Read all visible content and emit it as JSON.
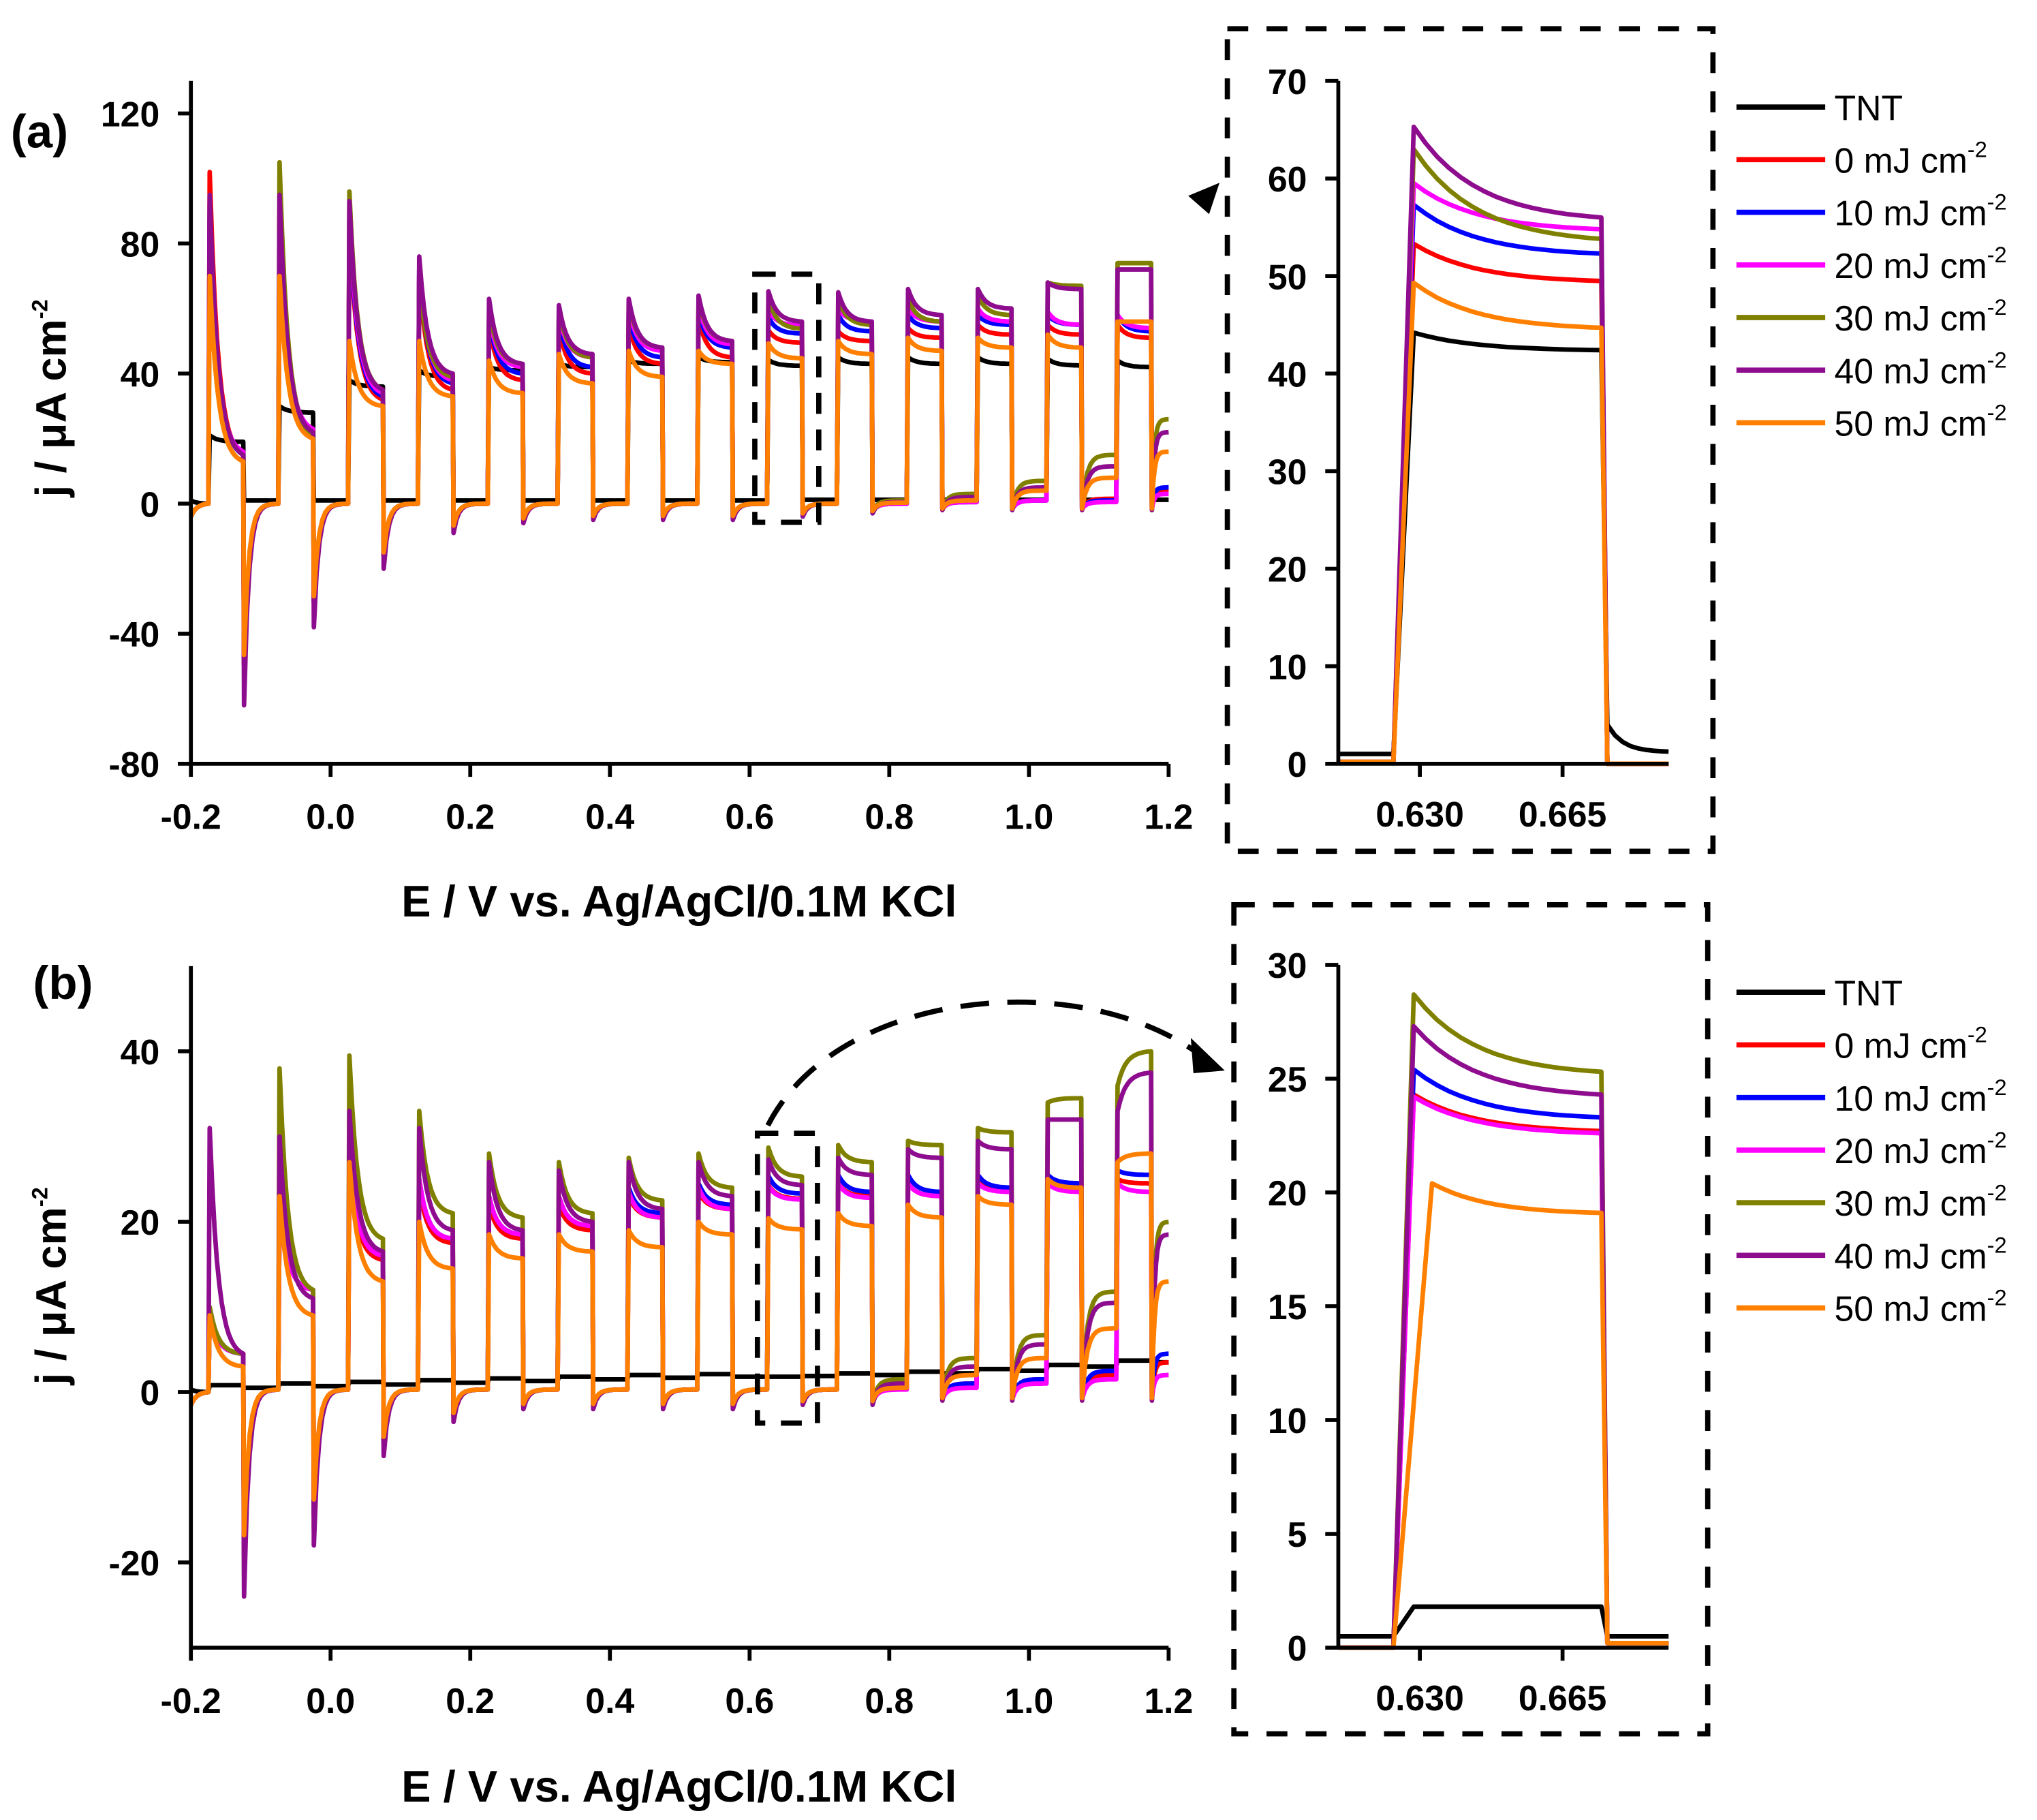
{
  "chart_data": [
    {
      "panel": "(a)",
      "type": "line",
      "xlabel": "E / V vs. Ag/AgCl/0.1M KCl",
      "ylabel": "j / μA cm",
      "ylabel_sup": "-2",
      "xlim": [
        -0.2,
        1.2
      ],
      "ylim": [
        -80,
        130
      ],
      "xticks": [
        "-0.2",
        "0.0",
        "0.2",
        "0.4",
        "0.6",
        "0.8",
        "1.0",
        "1.2"
      ],
      "yticks": [
        "-80",
        "-40",
        "0",
        "40",
        "80",
        "120"
      ],
      "chopping": {
        "first_light_on_V": -0.175,
        "period_V": 0.1,
        "light_on_width_V": 0.05
      },
      "off_transient_dip": [
        -62,
        -38,
        -20,
        -9,
        -6,
        -5,
        -5,
        -5,
        -4,
        -3,
        -2,
        -2,
        -2,
        -2
      ],
      "series": [
        {
          "name": "TNT",
          "color": "#000000",
          "dark_start": 1,
          "dip_scale": 0,
          "peak": [
            21,
            30,
            38,
            41,
            42,
            43,
            44,
            45,
            44.2,
            45,
            45,
            45,
            44.5,
            44
          ],
          "end": [
            19,
            28,
            36,
            39,
            41,
            42,
            43,
            43.5,
            42.4,
            43,
            43,
            43,
            42.5,
            42
          ],
          "dark": [
            1,
            1,
            1,
            1,
            1,
            1,
            1,
            1,
            1.2,
            1.2,
            1.2,
            1.2,
            1.2,
            1.2
          ]
        },
        {
          "name": "0 mJ cm-2",
          "color": "#ff0000",
          "dark_start": -4,
          "dip_scale": 0.8,
          "peak": [
            102,
            80,
            85,
            70,
            55,
            54,
            55,
            57,
            53.3,
            53,
            54,
            55,
            55,
            55
          ],
          "end": [
            15,
            22,
            32,
            35,
            38,
            40,
            43,
            45,
            49.5,
            50,
            51,
            52,
            52,
            51
          ],
          "dark": [
            0,
            0,
            0,
            0,
            0,
            0,
            0,
            0,
            0,
            0,
            0.5,
            1,
            1.5,
            4
          ]
        },
        {
          "name": "10 mJ cm-2",
          "color": "#0000ff",
          "dark_start": -4,
          "dip_scale": 0.8,
          "peak": [
            92,
            85,
            88,
            72,
            57,
            57,
            58,
            59,
            57.3,
            58,
            58,
            58,
            58,
            58
          ],
          "end": [
            15,
            22,
            33,
            37,
            40,
            42,
            45,
            48,
            52.3,
            53,
            54,
            55,
            55,
            53
          ],
          "dark": [
            0,
            0,
            0,
            0,
            0,
            0,
            0,
            0,
            0,
            0,
            0.5,
            1,
            1,
            5
          ]
        },
        {
          "name": "20 mJ cm-2",
          "color": "#ff00ff",
          "dark_start": -4,
          "dip_scale": 0.8,
          "peak": [
            86,
            88,
            90,
            72,
            58,
            58,
            60,
            61,
            59.5,
            60,
            60,
            60,
            59,
            58
          ],
          "end": [
            16,
            23,
            34,
            38,
            42,
            45,
            47,
            49,
            54.8,
            56,
            56,
            56,
            55,
            54
          ],
          "dark": [
            0,
            0,
            0,
            0,
            0,
            0,
            0,
            0,
            0,
            0,
            0.5,
            1,
            0.5,
            3
          ]
        },
        {
          "name": "30 mJ cm-2",
          "color": "#808000",
          "dark_start": -4,
          "dip_scale": 0.8,
          "peak": [
            70,
            105,
            96,
            70,
            60,
            60,
            62,
            63,
            63,
            63,
            63,
            64,
            68,
            74
          ],
          "end": [
            13,
            21,
            35,
            39,
            43,
            45,
            48,
            50,
            53.8,
            55,
            56,
            58,
            67,
            74
          ],
          "dark": [
            0,
            0,
            0,
            0,
            0,
            0,
            0,
            0,
            0,
            1,
            3,
            7,
            15,
            26
          ]
        },
        {
          "name": "40 mJ cm-2",
          "color": "#8e0c8e",
          "dark_start": -4,
          "dip_scale": 1,
          "peak": [
            95,
            95,
            93,
            76,
            63,
            61,
            63,
            64,
            65.3,
            65,
            66,
            66,
            68,
            72
          ],
          "end": [
            15,
            22,
            35,
            40,
            43,
            46,
            48,
            50,
            56,
            56,
            58,
            60,
            66,
            72
          ],
          "dark": [
            0,
            0,
            0,
            0,
            0,
            0,
            0,
            0,
            0,
            0.5,
            2,
            5,
            11.5,
            22
          ]
        },
        {
          "name": "50 mJ cm-2",
          "color": "#ff8000",
          "dark_start": -4,
          "dip_scale": 0.75,
          "peak": [
            70,
            70,
            50,
            50,
            44,
            46,
            47,
            47,
            49.3,
            50,
            51,
            51,
            52,
            56
          ],
          "end": [
            13,
            20,
            30,
            33,
            34,
            37,
            39,
            43,
            44.7,
            46,
            47,
            48,
            48,
            56
          ],
          "dark": [
            0,
            0,
            0,
            0,
            0,
            0,
            0,
            0,
            0,
            0.3,
            1,
            4,
            8,
            16
          ]
        }
      ],
      "inset": {
        "xlim": [
          0.61,
          0.691
        ],
        "ylim": [
          0,
          70
        ],
        "xticks": [
          "0.630",
          "0.665"
        ],
        "yticks": [
          "0",
          "10",
          "20",
          "30",
          "40",
          "50",
          "60",
          "70"
        ],
        "light_on_V": 0.625,
        "light_off_V": 0.6745,
        "series": [
          {
            "name": "TNT",
            "pre": 1,
            "peak": 44.2,
            "end": 42.4,
            "post": 1.2
          },
          {
            "name": "0 mJ cm-2",
            "pre": 0.2,
            "peak": 53.3,
            "end": 49.5,
            "post": 0
          },
          {
            "name": "10 mJ cm-2",
            "pre": 0.2,
            "peak": 57.3,
            "end": 52.3,
            "post": 0
          },
          {
            "name": "20 mJ cm-2",
            "pre": 0.2,
            "peak": 59.5,
            "end": 54.8,
            "post": 0
          },
          {
            "name": "30 mJ cm-2",
            "pre": 0.2,
            "peak": 63,
            "end": 53.8,
            "post": 0
          },
          {
            "name": "40 mJ cm-2",
            "pre": 0.2,
            "peak": 65.3,
            "end": 56,
            "post": 0
          },
          {
            "name": "50 mJ cm-2",
            "pre": 0.2,
            "peak": 49.3,
            "end": 44.7,
            "post": 0
          }
        ]
      }
    },
    {
      "panel": "(b)",
      "type": "line",
      "xlabel": "E / V vs. Ag/AgCl/0.1M KCl",
      "ylabel": "j / μA cm",
      "ylabel_sup": "-2",
      "xlim": [
        -0.2,
        1.2
      ],
      "ylim": [
        -30,
        50
      ],
      "xticks": [
        "-0.2",
        "0.0",
        "0.2",
        "0.4",
        "0.6",
        "0.8",
        "1.0",
        "1.2"
      ],
      "yticks": [
        "-20",
        "0",
        "20",
        "40"
      ],
      "chopping": {
        "first_light_on_V": -0.175,
        "period_V": 0.1,
        "light_on_width_V": 0.05
      },
      "off_transient_dip": [
        -24,
        -18,
        -7.5,
        -3.5,
        -2,
        -2,
        -2,
        -2,
        -1.5,
        -1.5,
        -1,
        -1,
        -1,
        -1
      ],
      "series": [
        {
          "name": "TNT",
          "color": "#000000",
          "dark_start": 0.3,
          "dip_scale": 0,
          "peak": [
            0.8,
            1,
            1.2,
            1.4,
            1.6,
            1.8,
            2,
            2.1,
            1.8,
            2.2,
            2.4,
            2.7,
            3.2,
            3.7
          ],
          "end": [
            0.8,
            1,
            1.2,
            1.4,
            1.6,
            1.8,
            2,
            2.1,
            1.8,
            2.2,
            2.4,
            2.7,
            3.2,
            3.7
          ],
          "dark": [
            0.5,
            0.7,
            0.9,
            1.1,
            1.3,
            1.5,
            1.7,
            1.8,
            1.9,
            2.0,
            2.2,
            2.5,
            3.0,
            3.5
          ]
        },
        {
          "name": "0 mJ cm-2",
          "color": "#ff0000",
          "dark_start": -1.5,
          "dip_scale": 0.8,
          "peak": [
            9,
            22,
            27,
            24,
            22,
            22,
            23,
            23.5,
            24.3,
            24.5,
            24.5,
            25,
            25,
            25
          ],
          "end": [
            4.5,
            12,
            15.5,
            17.5,
            18,
            19,
            20.5,
            21.5,
            22.7,
            23,
            23,
            23.5,
            24,
            24.5
          ],
          "dark": [
            0.3,
            0.3,
            0.3,
            0.3,
            0.3,
            0.3,
            0.3,
            0.3,
            0.3,
            0.5,
            1,
            1.5,
            2,
            3.5
          ]
        },
        {
          "name": "10 mJ cm-2",
          "color": "#0000ff",
          "dark_start": -1.5,
          "dip_scale": 0.8,
          "peak": [
            9,
            22,
            28,
            25,
            23,
            23,
            24,
            24.5,
            25.4,
            25.5,
            25.5,
            25.5,
            25.5,
            26
          ],
          "end": [
            4.5,
            12,
            16,
            18,
            18.5,
            19.5,
            21,
            22,
            23.3,
            23.5,
            23.5,
            24,
            24.5,
            25.5
          ],
          "dark": [
            0.3,
            0.3,
            0.3,
            0.3,
            0.3,
            0.3,
            0.3,
            0.3,
            0.3,
            0.5,
            1,
            1.5,
            2.5,
            4.5
          ]
        },
        {
          "name": "20 mJ cm-2",
          "color": "#ff00ff",
          "dark_start": -1.5,
          "dip_scale": 0.8,
          "peak": [
            9,
            22,
            28,
            25,
            23,
            23,
            23.5,
            24,
            24.2,
            24.5,
            24.5,
            24.5,
            24.5,
            24.5
          ],
          "end": [
            4.5,
            12,
            16,
            18,
            18.5,
            19.5,
            20.5,
            21.5,
            22.6,
            22.8,
            23,
            23.5,
            23.5,
            23.5
          ],
          "dark": [
            0.3,
            0.3,
            0.3,
            0.3,
            0.3,
            0.3,
            0.3,
            0.3,
            0.3,
            0.3,
            0.5,
            1,
            1.5,
            2
          ]
        },
        {
          "name": "30 mJ cm-2",
          "color": "#808000",
          "dark_start": -1.5,
          "dip_scale": 0.9,
          "peak": [
            10,
            38,
            39.5,
            33,
            28,
            27,
            27.5,
            28,
            28.7,
            29,
            29.5,
            31,
            34,
            36
          ],
          "end": [
            4.5,
            12,
            18,
            21,
            20.5,
            21,
            22.5,
            24,
            25.3,
            27,
            29,
            30.5,
            34.5,
            40
          ],
          "dark": [
            0.3,
            0.3,
            0.3,
            0.3,
            0.3,
            0.3,
            0.3,
            0.3,
            0.3,
            1.5,
            4,
            6.7,
            11.8,
            20
          ]
        },
        {
          "name": "40 mJ cm-2",
          "color": "#8e0c8e",
          "dark_start": -1.5,
          "dip_scale": 1,
          "peak": [
            31,
            30,
            33,
            31,
            27,
            26,
            27,
            27,
            27.3,
            27.5,
            28.5,
            29.5,
            32,
            33
          ],
          "end": [
            4.5,
            11,
            16.5,
            19,
            19,
            20,
            21.5,
            23,
            24.3,
            25.5,
            27.5,
            28.5,
            32,
            37.5
          ],
          "dark": [
            0.3,
            0.3,
            0.3,
            0.3,
            0.3,
            0.3,
            0.3,
            0.3,
            0.3,
            1,
            3,
            5.6,
            10.5,
            18.5
          ]
        },
        {
          "name": "50 mJ cm-2",
          "color": "#ff8000",
          "dark_start": -1.5,
          "dip_scale": 0.7,
          "peak": [
            9,
            23,
            27,
            20,
            18.5,
            18.5,
            19,
            20,
            20.4,
            21,
            22,
            23,
            25,
            27
          ],
          "end": [
            3,
            9,
            13,
            14.5,
            15.7,
            16.5,
            17,
            18.5,
            19.1,
            19.5,
            20.5,
            22,
            24,
            28
          ],
          "dark": [
            0.3,
            0.3,
            0.3,
            0.3,
            0.3,
            0.3,
            0.3,
            0.3,
            0.3,
            0.5,
            2,
            4,
            7.5,
            13
          ]
        }
      ],
      "inset": {
        "xlim": [
          0.61,
          0.691
        ],
        "ylim": [
          0,
          30
        ],
        "xticks": [
          "0.630",
          "0.665"
        ],
        "yticks": [
          "0",
          "5",
          "10",
          "15",
          "20",
          "25",
          "30"
        ],
        "light_on_V": 0.625,
        "light_off_V": 0.6745,
        "series": [
          {
            "name": "TNT",
            "pre": 0.5,
            "peak": 1.8,
            "end": 1.8,
            "post": 0.5
          },
          {
            "name": "0 mJ cm-2",
            "pre": 0,
            "peak": 24.3,
            "end": 22.7,
            "post": 0.2
          },
          {
            "name": "10 mJ cm-2",
            "pre": 0,
            "peak": 25.4,
            "end": 23.3,
            "post": 0.2
          },
          {
            "name": "20 mJ cm-2",
            "pre": 0,
            "peak": 24.2,
            "end": 22.6,
            "post": 0.2
          },
          {
            "name": "30 mJ cm-2",
            "pre": 0,
            "peak": 28.7,
            "end": 25.3,
            "post": 0.2
          },
          {
            "name": "40 mJ cm-2",
            "pre": 0,
            "peak": 27.3,
            "end": 24.3,
            "post": 0.2
          },
          {
            "name": "50 mJ cm-2",
            "pre": 0,
            "peak": 20.4,
            "end": 19.1,
            "post": 0.2
          }
        ]
      }
    }
  ],
  "legend": [
    {
      "text": "TNT",
      "sup": ""
    },
    {
      "text": "0 mJ cm",
      "sup": "-2"
    },
    {
      "text": "10 mJ cm",
      "sup": "-2"
    },
    {
      "text": "20 mJ cm",
      "sup": "-2"
    },
    {
      "text": "30 mJ cm",
      "sup": "-2"
    },
    {
      "text": "40 mJ cm",
      "sup": "-2"
    },
    {
      "text": "50 mJ cm",
      "sup": "-2"
    }
  ]
}
